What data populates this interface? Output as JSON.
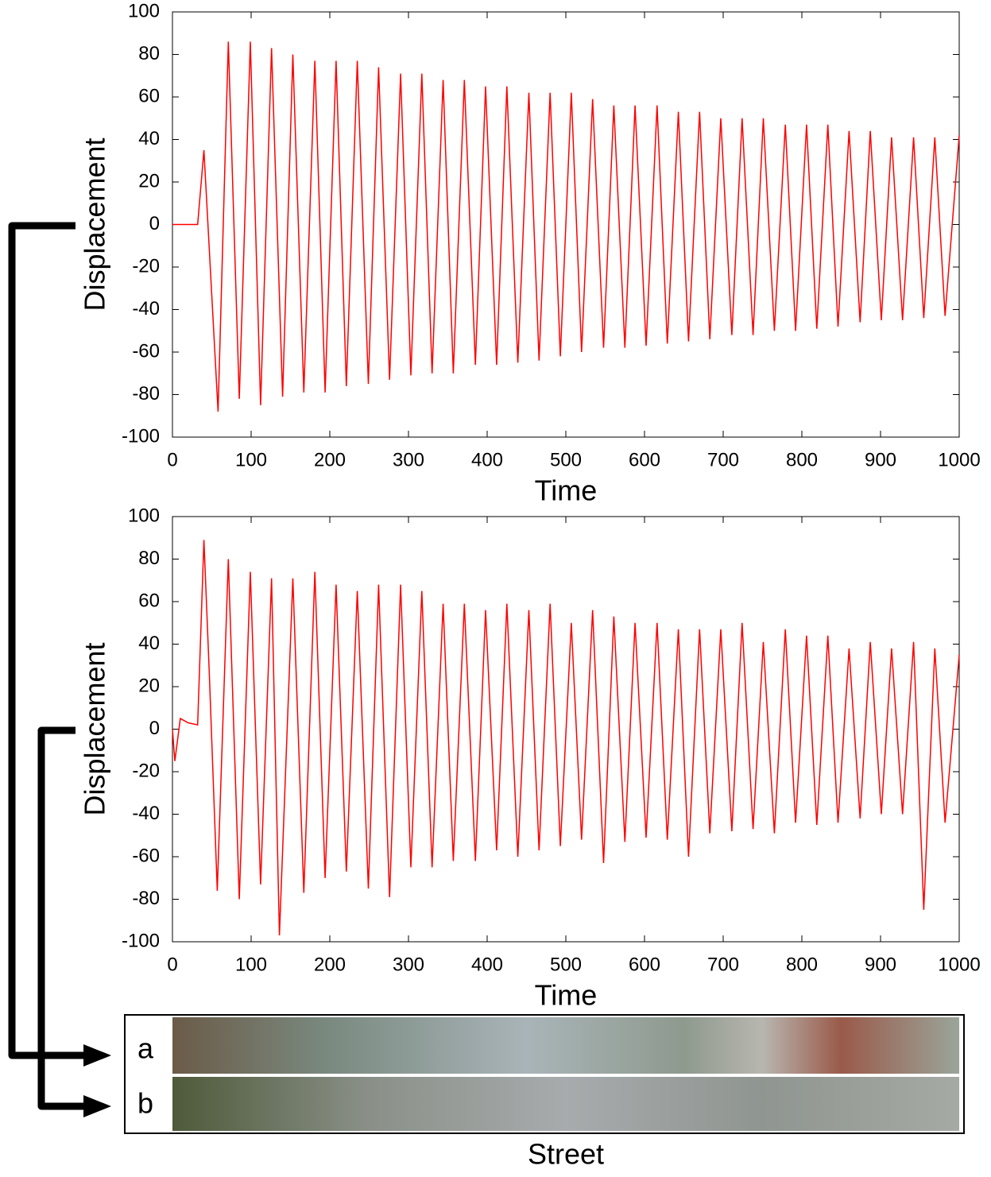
{
  "chart_data": [
    {
      "type": "line",
      "xlabel": "Time",
      "ylabel": "Displacement",
      "xlim": [
        0,
        1000
      ],
      "ylim": [
        -100,
        100
      ],
      "xticks": [
        0,
        100,
        200,
        300,
        400,
        500,
        600,
        700,
        800,
        900,
        1000
      ],
      "yticks": [
        -100,
        -80,
        -60,
        -40,
        -20,
        0,
        20,
        40,
        60,
        80,
        100
      ],
      "series": [
        {
          "color": "#ff0000",
          "x": [
            0,
            32,
            40,
            58,
            71,
            85,
            99,
            112,
            126,
            140,
            153,
            167,
            181,
            194,
            208,
            221,
            235,
            249,
            262,
            276,
            290,
            303,
            317,
            330,
            344,
            357,
            371,
            385,
            398,
            412,
            425,
            439,
            453,
            466,
            480,
            493,
            507,
            520,
            534,
            548,
            561,
            575,
            588,
            602,
            616,
            629,
            643,
            656,
            670,
            683,
            697,
            711,
            724,
            738,
            751,
            765,
            779,
            792,
            806,
            819,
            833,
            846,
            860,
            874,
            887,
            901,
            914,
            928,
            942,
            955,
            969,
            982,
            1000
          ],
          "values": [
            0,
            0,
            35,
            -88,
            86,
            -82,
            86,
            -85,
            83,
            -81,
            80,
            -79,
            77,
            -79,
            77,
            -76,
            77,
            -75,
            74,
            -73,
            71,
            -71,
            71,
            -70,
            68,
            -70,
            68,
            -66,
            65,
            -66,
            65,
            -65,
            62,
            -64,
            62,
            -62,
            62,
            -60,
            59,
            -58,
            56,
            -58,
            56,
            -57,
            56,
            -56,
            53,
            -55,
            53,
            -54,
            50,
            -52,
            50,
            -52,
            50,
            -50,
            47,
            -50,
            47,
            -49,
            47,
            -48,
            44,
            -46,
            44,
            -45,
            41,
            -45,
            41,
            -44,
            41,
            -43,
            42
          ]
        }
      ]
    },
    {
      "type": "line",
      "xlabel": "Time",
      "ylabel": "Displacement",
      "xlim": [
        0,
        1000
      ],
      "ylim": [
        -100,
        100
      ],
      "xticks": [
        0,
        100,
        200,
        300,
        400,
        500,
        600,
        700,
        800,
        900,
        1000
      ],
      "yticks": [
        -100,
        -80,
        -60,
        -40,
        -20,
        0,
        20,
        40,
        60,
        80,
        100
      ],
      "series": [
        {
          "color": "#ff0000",
          "x": [
            0,
            3,
            10,
            20,
            32,
            40,
            47,
            57,
            71,
            85,
            99,
            112,
            126,
            136,
            153,
            167,
            181,
            194,
            208,
            221,
            235,
            249,
            262,
            276,
            290,
            303,
            317,
            330,
            344,
            357,
            371,
            385,
            398,
            412,
            425,
            439,
            453,
            466,
            480,
            493,
            507,
            520,
            534,
            548,
            561,
            575,
            588,
            602,
            616,
            629,
            643,
            656,
            670,
            683,
            697,
            711,
            724,
            738,
            751,
            765,
            779,
            792,
            806,
            819,
            833,
            846,
            860,
            874,
            887,
            901,
            914,
            928,
            942,
            955,
            969,
            982,
            1000
          ],
          "values": [
            0,
            -15,
            5,
            3,
            2,
            89,
            25,
            -76,
            80,
            -80,
            74,
            -73,
            71,
            -97,
            71,
            -77,
            74,
            -70,
            68,
            -67,
            65,
            -75,
            68,
            -79,
            68,
            -65,
            65,
            -65,
            59,
            -62,
            59,
            -62,
            56,
            -57,
            59,
            -60,
            56,
            -57,
            59,
            -55,
            50,
            -52,
            56,
            -63,
            53,
            -53,
            50,
            -51,
            50,
            -52,
            47,
            -60,
            47,
            -49,
            47,
            -48,
            50,
            -47,
            41,
            -49,
            47,
            -44,
            44,
            -45,
            44,
            -44,
            38,
            -42,
            41,
            -40,
            38,
            -40,
            41,
            -85,
            38,
            -44,
            35
          ]
        }
      ]
    }
  ],
  "street_panel": {
    "labels": [
      "a",
      "b"
    ],
    "caption": "Street"
  }
}
